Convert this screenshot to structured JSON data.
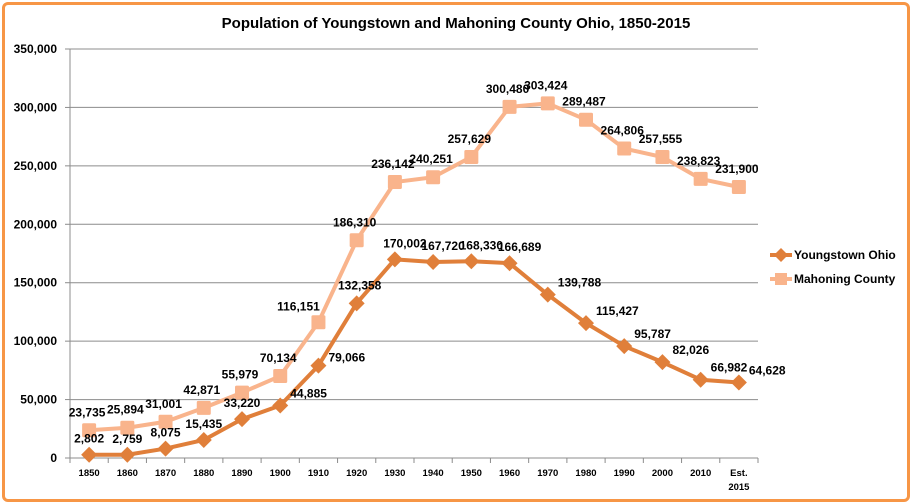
{
  "chart_data": {
    "type": "line",
    "title": "Population of Youngstown and Mahoning County Ohio, 1850-2015",
    "categories": [
      "1850",
      "1860",
      "1870",
      "1880",
      "1890",
      "1900",
      "1910",
      "1920",
      "1930",
      "1940",
      "1950",
      "1960",
      "1970",
      "1980",
      "1990",
      "2000",
      "2010",
      "Est. 2015"
    ],
    "ylim": [
      0,
      350000
    ],
    "yticks": [
      0,
      50000,
      100000,
      150000,
      200000,
      250000,
      300000,
      350000
    ],
    "ytick_labels": [
      "0",
      "50,000",
      "100,000",
      "150,000",
      "200,000",
      "250,000",
      "300,000",
      "350,000"
    ],
    "grid": true,
    "legend": "right",
    "series": [
      {
        "name": "Youngstown Ohio",
        "color": "#E07F3A",
        "marker": "diamond",
        "values": [
          2802,
          2759,
          8075,
          15435,
          33220,
          44885,
          79066,
          132358,
          170002,
          167720,
          168330,
          166689,
          139788,
          115427,
          95787,
          82026,
          66982,
          64628
        ]
      },
      {
        "name": "Mahoning County",
        "color": "#F9B48C",
        "marker": "square",
        "values": [
          23735,
          25894,
          31001,
          42871,
          55979,
          70134,
          116151,
          186310,
          236142,
          240251,
          257629,
          300480,
          303424,
          289487,
          264806,
          257555,
          238823,
          231900
        ]
      }
    ]
  }
}
